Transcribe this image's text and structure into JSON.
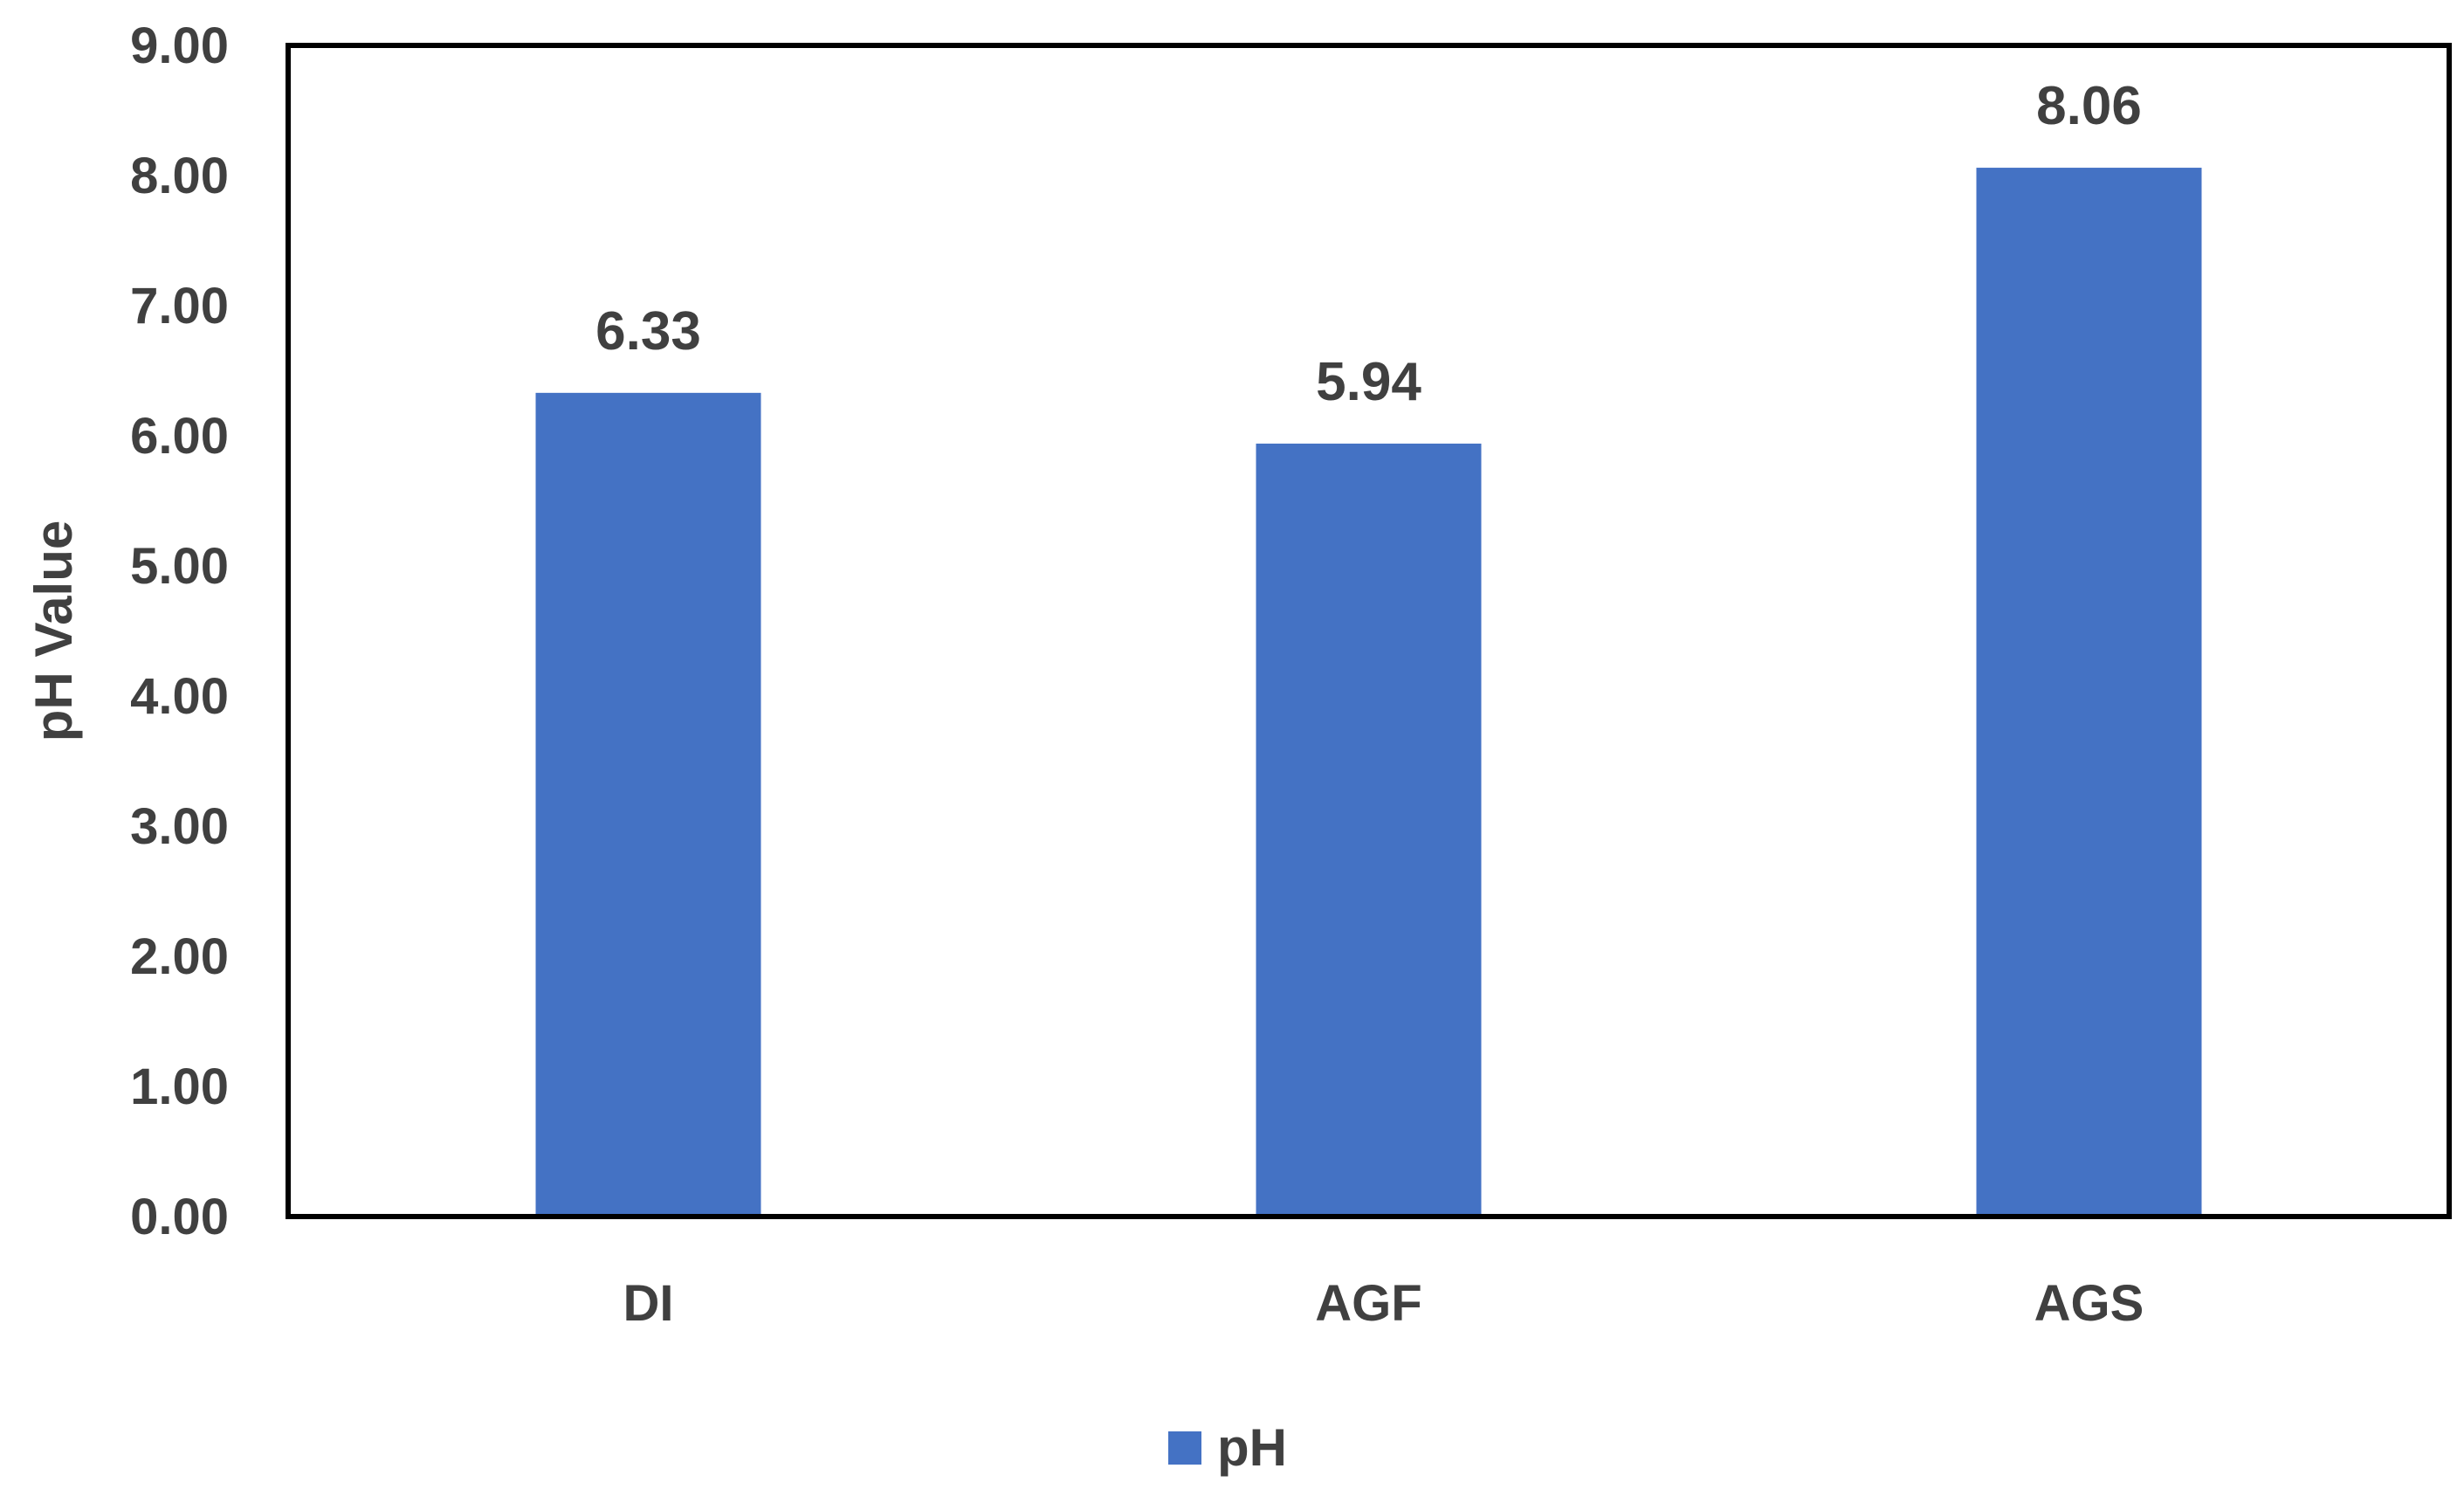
{
  "chart_data": {
    "type": "bar",
    "title": "",
    "xlabel": "",
    "ylabel": "pH Value",
    "categories": [
      "DI",
      "AGF",
      "AGS"
    ],
    "series": [
      {
        "name": "pH",
        "values": [
          6.33,
          5.94,
          8.06
        ]
      }
    ],
    "data_labels": [
      "6.33",
      "5.94",
      "8.06"
    ],
    "ylim": [
      0,
      9
    ],
    "yticks": [
      "0.00",
      "1.00",
      "2.00",
      "3.00",
      "4.00",
      "5.00",
      "6.00",
      "7.00",
      "8.00",
      "9.00"
    ],
    "grid": false,
    "legend_position": "bottom",
    "colors": {
      "bar": "#4472C4",
      "text": "#404040",
      "axis": "#000000"
    }
  }
}
